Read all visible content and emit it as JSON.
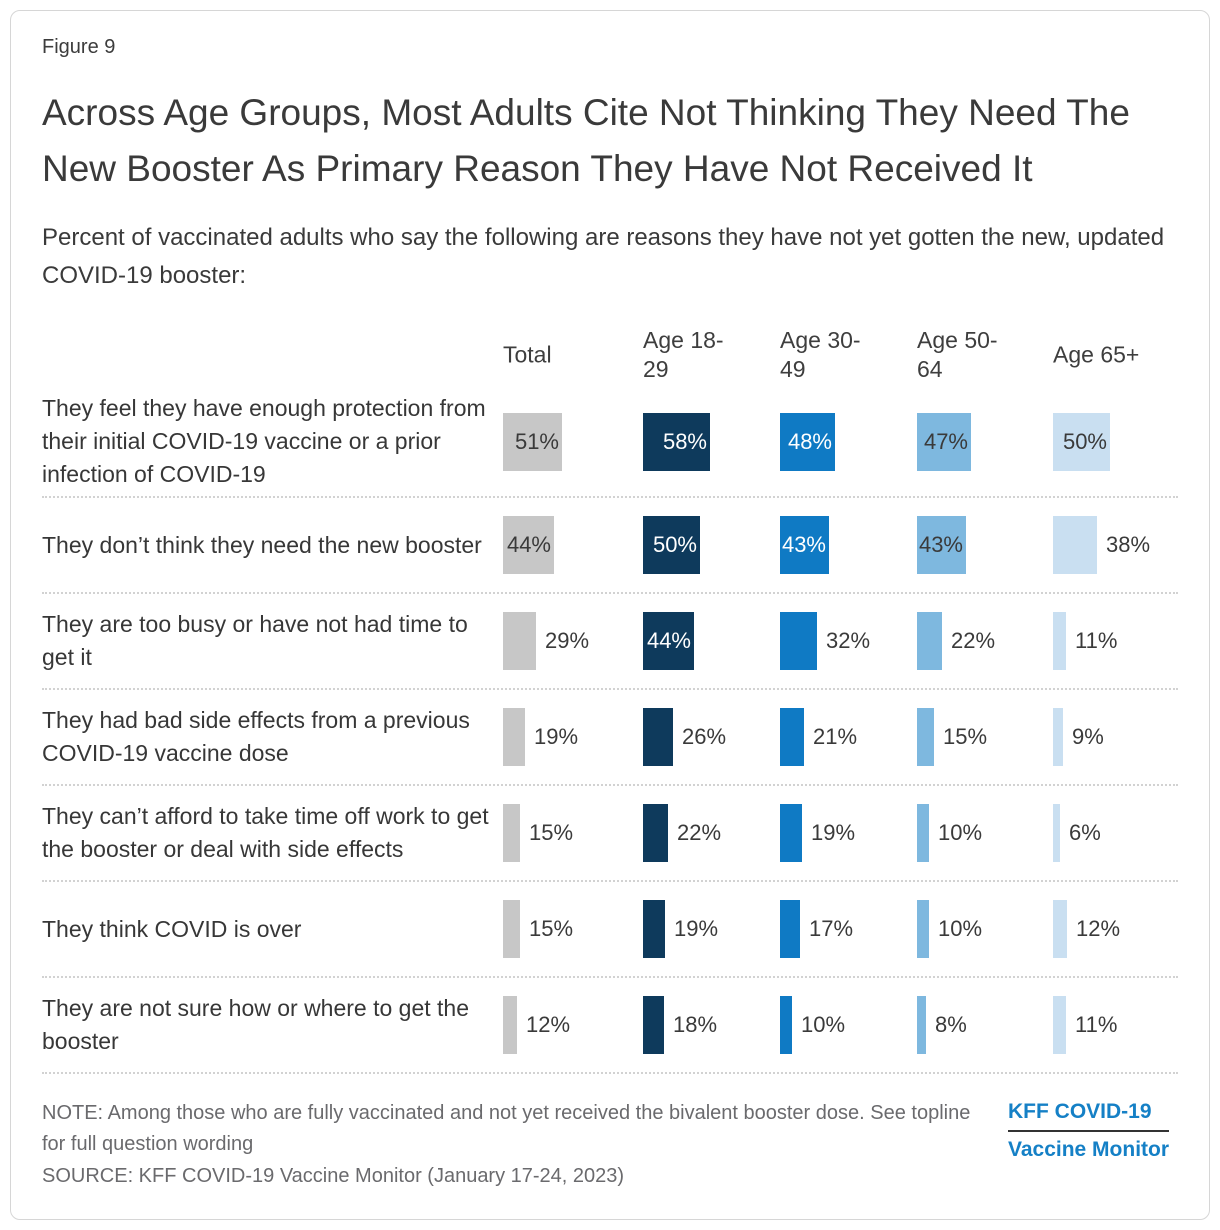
{
  "figure_label": "Figure 9",
  "title": "Across Age Groups, Most Adults Cite Not Thinking They Need The New Booster As Primary Reason They Have Not Received It",
  "subtitle": "Percent of vaccinated adults who say the following are reasons they have not yet gotten the new, updated COVID-19 booster:",
  "chart_data": {
    "type": "bar",
    "unit": "percent",
    "orientation": "horizontal-small-multiples",
    "value_range": [
      0,
      60
    ],
    "columns": [
      {
        "label": "Total",
        "color": "#c7c7c7",
        "label_color_on_bar": "#3a3a3a"
      },
      {
        "label": "Age 18-29",
        "color": "#0e3a5c",
        "label_color_on_bar": "#ffffff"
      },
      {
        "label": "Age 30-49",
        "color": "#0f7ac4",
        "label_color_on_bar": "#ffffff"
      },
      {
        "label": "Age 50-64",
        "color": "#7eb8df",
        "label_color_on_bar": "#3a3a3a"
      },
      {
        "label": "Age 65+",
        "color": "#c9dff1",
        "label_color_on_bar": "#3a3a3a"
      }
    ],
    "rows": [
      {
        "label": "They feel they have enough protection from their initial COVID-19 vaccine or a prior infection of COVID-19",
        "values": [
          51,
          58,
          48,
          47,
          50
        ]
      },
      {
        "label": "They don’t think they need the new booster",
        "values": [
          44,
          50,
          43,
          43,
          38
        ]
      },
      {
        "label": "They are too busy or have not had time to get it",
        "values": [
          29,
          44,
          32,
          22,
          11
        ]
      },
      {
        "label": "They had bad side effects from a previous COVID-19 vaccine dose",
        "values": [
          19,
          26,
          21,
          15,
          9
        ]
      },
      {
        "label": "They can’t afford to take time off work to get the booster or deal with side effects",
        "values": [
          15,
          22,
          19,
          10,
          6
        ]
      },
      {
        "label": "They think COVID is over",
        "values": [
          15,
          19,
          17,
          10,
          12
        ]
      },
      {
        "label": "They are not sure how or where to get the booster",
        "values": [
          12,
          18,
          10,
          8,
          11
        ]
      }
    ]
  },
  "footer": {
    "note": "NOTE: Among those who are fully vaccinated and not yet received the bivalent booster dose. See topline for full question wording",
    "source": "SOURCE: KFF COVID-19 Vaccine Monitor (January 17-24, 2023)",
    "logo_line1": "KFF COVID-19",
    "logo_line2": "Vaccine Monitor",
    "logo_color": "#1580c6"
  }
}
